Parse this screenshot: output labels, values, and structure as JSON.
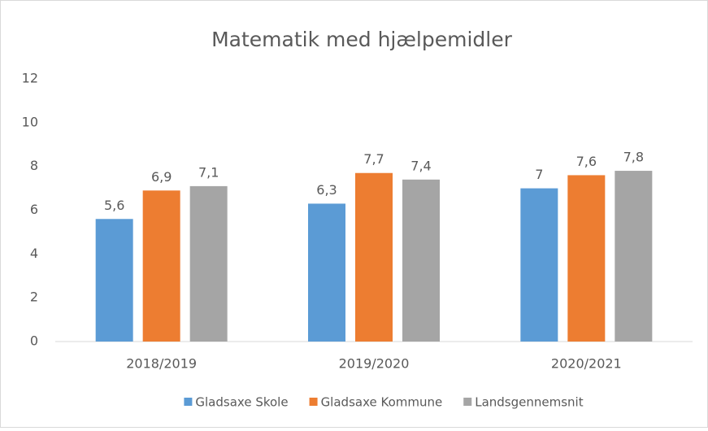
{
  "chart_data": {
    "type": "bar",
    "title": "Matematik med hjælpemidler",
    "categories": [
      "2018/2019",
      "2019/2020",
      "2020/2021"
    ],
    "series": [
      {
        "name": "Gladsaxe Skole",
        "color": "#5b9bd5",
        "values": [
          5.6,
          6.3,
          7
        ],
        "value_labels": [
          "5,6",
          "6,3",
          "7"
        ]
      },
      {
        "name": "Gladsaxe Kommune",
        "color": "#ed7d31",
        "values": [
          6.9,
          7.7,
          7.6
        ],
        "value_labels": [
          "6,9",
          "7,7",
          "7,6"
        ]
      },
      {
        "name": "Landsgennemsnit",
        "color": "#a5a5a5",
        "values": [
          7.1,
          7.4,
          7.8
        ],
        "value_labels": [
          "7,1",
          "7,4",
          "7,8"
        ]
      }
    ],
    "ylim": [
      0,
      12
    ],
    "yticks": [
      0,
      2,
      4,
      6,
      8,
      10,
      12
    ],
    "grid": false,
    "legend": "bottom"
  }
}
